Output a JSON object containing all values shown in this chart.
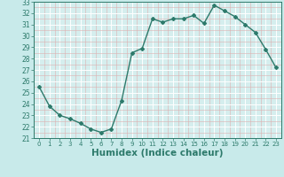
{
  "x": [
    0,
    1,
    2,
    3,
    4,
    5,
    6,
    7,
    8,
    9,
    10,
    11,
    12,
    13,
    14,
    15,
    16,
    17,
    18,
    19,
    20,
    21,
    22,
    23
  ],
  "y": [
    25.5,
    23.8,
    23.0,
    22.7,
    22.3,
    21.8,
    21.5,
    21.8,
    24.3,
    28.5,
    28.9,
    31.5,
    31.2,
    31.5,
    31.5,
    31.8,
    31.1,
    32.7,
    32.2,
    31.7,
    31.0,
    30.3,
    28.8,
    27.2
  ],
  "xlabel": "Humidex (Indice chaleur)",
  "xlim": [
    -0.5,
    23.5
  ],
  "ylim": [
    21,
    33
  ],
  "yticks": [
    21,
    22,
    23,
    24,
    25,
    26,
    27,
    28,
    29,
    30,
    31,
    32,
    33
  ],
  "xticks": [
    0,
    1,
    2,
    3,
    4,
    5,
    6,
    7,
    8,
    9,
    10,
    11,
    12,
    13,
    14,
    15,
    16,
    17,
    18,
    19,
    20,
    21,
    22,
    23
  ],
  "line_color": "#2d7a6b",
  "marker": "D",
  "marker_size": 2.0,
  "bg_color": "#c8eaea",
  "plot_bg_color": "#d5eeee",
  "grid_major_color": "#ffffff",
  "grid_minor_color": "#ddb0b0",
  "tick_label_fontsize": 5.5,
  "xlabel_fontsize": 7.5,
  "line_width": 1.0
}
